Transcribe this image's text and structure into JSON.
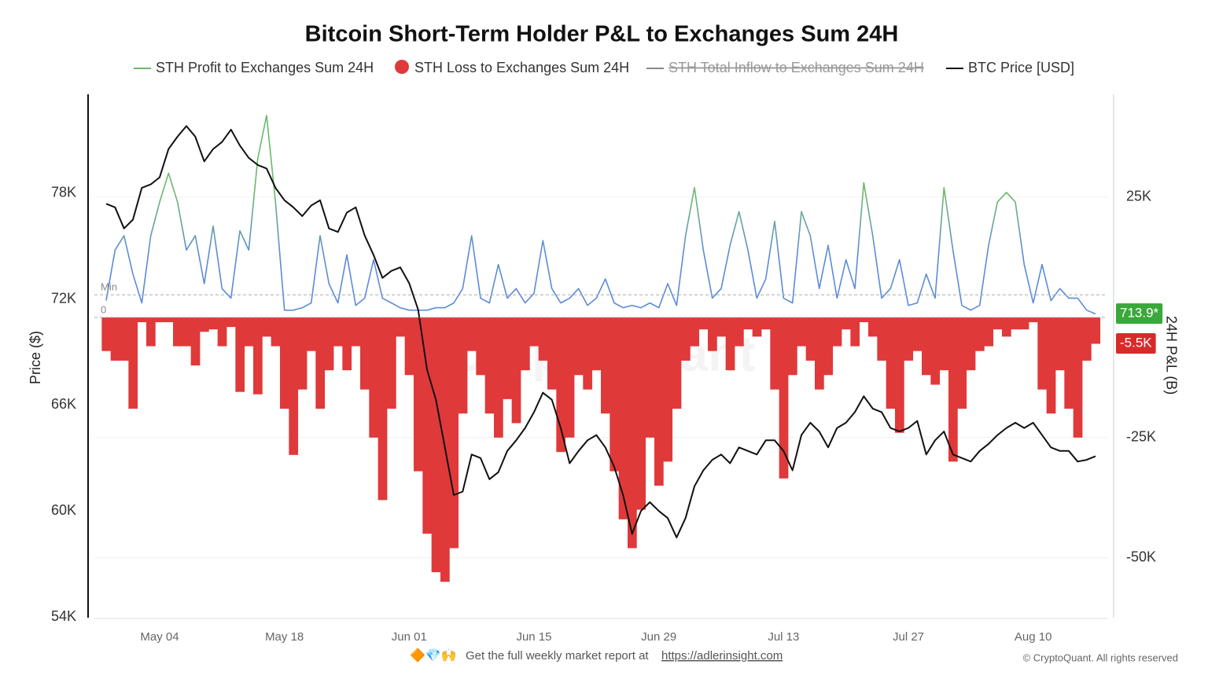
{
  "chart_data": {
    "type": "combo",
    "title": "Bitcoin Short-Term Holder P&L to Exchanges Sum 24H",
    "y_label": "Price ($)",
    "y2_label": "24H P&L (B)",
    "watermark": "CryptoQuant",
    "footer": {
      "icons": "🔶💎🙌",
      "text": "Get the full weekly market report at",
      "link": "https://adlerinsight.com",
      "copyright": "© CryptoQuant. All rights reserved"
    },
    "categories": [
      "Apr 28",
      "Apr 29",
      "Apr 30",
      "May 01",
      "May 02",
      "May 03",
      "May 04",
      "May 05",
      "May 06",
      "May 07",
      "May 08",
      "May 09",
      "May 10",
      "May 11",
      "May 12",
      "May 13",
      "May 14",
      "May 15",
      "May 16",
      "May 17",
      "May 18",
      "May 19",
      "May 20",
      "May 21",
      "May 22",
      "May 23",
      "May 24",
      "May 25",
      "May 26",
      "May 27",
      "May 28",
      "May 29",
      "May 30",
      "May 31",
      "Jun 01",
      "Jun 02",
      "Jun 03",
      "Jun 04",
      "Jun 05",
      "Jun 06",
      "Jun 07",
      "Jun 08",
      "Jun 09",
      "Jun 10",
      "Jun 11",
      "Jun 12",
      "Jun 13",
      "Jun 14",
      "Jun 15",
      "Jun 16",
      "Jun 17",
      "Jun 18",
      "Jun 19",
      "Jun 20",
      "Jun 21",
      "Jun 22",
      "Jun 23",
      "Jun 24",
      "Jun 25",
      "Jun 26",
      "Jun 27",
      "Jun 28",
      "Jun 29",
      "Jun 30",
      "Jul 01",
      "Jul 02",
      "Jul 03",
      "Jul 04",
      "Jul 05",
      "Jul 06",
      "Jul 07",
      "Jul 08",
      "Jul 09",
      "Jul 10",
      "Jul 11",
      "Jul 12",
      "Jul 13",
      "Jul 14",
      "Jul 15",
      "Jul 16",
      "Jul 17",
      "Jul 18",
      "Jul 19",
      "Jul 20",
      "Jul 21",
      "Jul 22",
      "Jul 23",
      "Jul 24",
      "Jul 25",
      "Jul 26",
      "Jul 27",
      "Jul 28",
      "Jul 29",
      "Jul 30",
      "Jul 31",
      "Aug 01",
      "Aug 02",
      "Aug 03",
      "Aug 04",
      "Aug 05",
      "Aug 06",
      "Aug 07",
      "Aug 08",
      "Aug 09",
      "Aug 10",
      "Aug 11",
      "Aug 12",
      "Aug 13",
      "Aug 14",
      "Aug 15",
      "Aug 16",
      "Aug 17"
    ],
    "xticks": [
      "May 04",
      "May 18",
      "Jun 01",
      "Jun 15",
      "Jun 29",
      "Jul 13",
      "Jul 27",
      "Aug 10"
    ],
    "ylim": [
      54000,
      83600
    ],
    "yticks": [
      {
        "value": 54000,
        "label": "54K"
      },
      {
        "value": 60000,
        "label": "60K"
      },
      {
        "value": 66000,
        "label": "66K"
      },
      {
        "value": 72000,
        "label": "72K"
      },
      {
        "value": 78000,
        "label": "78K"
      }
    ],
    "y2lim": [
      -62300,
      46400
    ],
    "y2ticks": [
      {
        "value": -50000,
        "label": "-50K"
      },
      {
        "value": -25000,
        "label": "-25K"
      },
      {
        "value": 25000,
        "label": "25K"
      }
    ],
    "ref_lines": [
      {
        "value": 4700,
        "label": "Min"
      },
      {
        "value": 0,
        "label": "0"
      }
    ],
    "grid": true,
    "legend": "top",
    "series": [
      {
        "name": "STH Profit to Exchanges Sum 24H",
        "kind": "line",
        "axis": "y2",
        "color": "#6cb86c",
        "low_color": "#5b8bd9",
        "end_label": "713.9*",
        "end_color": "#3aa83a",
        "values": [
          3500,
          14000,
          17000,
          9000,
          3000,
          17000,
          24000,
          30000,
          24000,
          14000,
          17000,
          7000,
          19000,
          6000,
          4000,
          18000,
          14000,
          33000,
          42000,
          24000,
          1500,
          1500,
          2000,
          3000,
          17000,
          7000,
          3000,
          13000,
          2500,
          4000,
          12000,
          4000,
          3000,
          2000,
          1500,
          1500,
          1500,
          2000,
          2000,
          3000,
          6000,
          17000,
          4000,
          3000,
          11000,
          4000,
          6000,
          3000,
          5000,
          16000,
          6000,
          3000,
          4000,
          6000,
          2500,
          4000,
          8000,
          3000,
          2000,
          2500,
          2000,
          3000,
          2000,
          7000,
          2500,
          17000,
          27000,
          14000,
          4000,
          6000,
          15000,
          22000,
          14000,
          4000,
          8000,
          20000,
          4000,
          3000,
          22000,
          17000,
          6000,
          15000,
          4000,
          12000,
          6000,
          28000,
          17000,
          4000,
          6000,
          12000,
          2500,
          3000,
          9000,
          4000,
          27000,
          14000,
          2500,
          1500,
          2500,
          15000,
          24000,
          26000,
          24000,
          11000,
          3000,
          11000,
          3500,
          6000,
          4000,
          4000,
          1500,
          713.9
        ]
      },
      {
        "name": "STH Loss to Exchanges Sum 24H",
        "kind": "area",
        "axis": "y2",
        "color": "#e0393a",
        "end_label": "-5.5K",
        "end_color": "#d92a2a",
        "values": [
          -7000,
          -9000,
          -9000,
          -19000,
          -1000,
          -6000,
          -1000,
          -1000,
          -6000,
          -6000,
          -10000,
          -3000,
          -2500,
          -6000,
          -2000,
          -15500,
          -6000,
          -16000,
          -4000,
          -6000,
          -19000,
          -28600,
          -15000,
          -7000,
          -19000,
          -11000,
          -6000,
          -11000,
          -6000,
          -15000,
          -25000,
          -38000,
          -19000,
          -4000,
          -12000,
          -32000,
          -45000,
          -53000,
          -55000,
          -48000,
          -20000,
          -7000,
          -12000,
          -20000,
          -25000,
          -17000,
          -22000,
          -11000,
          -6000,
          -9000,
          -15000,
          -28000,
          -25000,
          -12000,
          -15000,
          -11000,
          -20000,
          -32000,
          -42000,
          -48000,
          -40000,
          -25000,
          -35000,
          -30000,
          -19000,
          -9000,
          -6000,
          -2500,
          -7000,
          -4000,
          -11000,
          -6000,
          -2500,
          -4000,
          -2500,
          -15000,
          -33500,
          -12000,
          -6000,
          -9000,
          -15000,
          -12000,
          -6000,
          -2500,
          -6000,
          -1000,
          -4000,
          -9000,
          -19000,
          -24000,
          -9000,
          -7000,
          -12000,
          -14000,
          -11000,
          -30000,
          -19000,
          -11000,
          -7000,
          -6000,
          -2500,
          -4000,
          -2500,
          -2500,
          -1000,
          -15000,
          -20000,
          -11000,
          -19000,
          -25000,
          -9000,
          -5500
        ]
      },
      {
        "name": "STH Total Inflow to Exchanges Sum 24H",
        "kind": "line",
        "axis": "y2",
        "color": "#888888",
        "visible": false
      },
      {
        "name": "BTC Price [USD]",
        "kind": "line",
        "axis": "y",
        "color": "#111111",
        "values": [
          77400,
          77200,
          76000,
          76500,
          78300,
          78500,
          78900,
          80500,
          81200,
          81800,
          81200,
          79800,
          80500,
          80900,
          81600,
          80700,
          80000,
          79600,
          79400,
          78300,
          77600,
          77200,
          76700,
          77300,
          77600,
          76000,
          75800,
          76900,
          77200,
          75600,
          74500,
          73200,
          73600,
          73800,
          72900,
          71400,
          68000,
          66300,
          63600,
          60900,
          61100,
          63200,
          63000,
          61800,
          62200,
          63400,
          64000,
          64700,
          65600,
          66700,
          66300,
          64700,
          62700,
          63400,
          64000,
          64300,
          63600,
          62500,
          60900,
          58700,
          60000,
          60500,
          60000,
          59600,
          58500,
          59600,
          61400,
          62300,
          62900,
          63200,
          62700,
          63600,
          63400,
          63200,
          64000,
          64000,
          63400,
          62300,
          64300,
          65000,
          64500,
          63600,
          64700,
          65000,
          65600,
          66500,
          65800,
          65600,
          64700,
          64500,
          64700,
          65100,
          63200,
          64000,
          64500,
          63200,
          63000,
          62800,
          63400,
          63800,
          64300,
          64700,
          65000,
          64700,
          65000,
          64300,
          63600,
          63400,
          63400,
          62800,
          62900,
          63100
        ]
      }
    ]
  }
}
